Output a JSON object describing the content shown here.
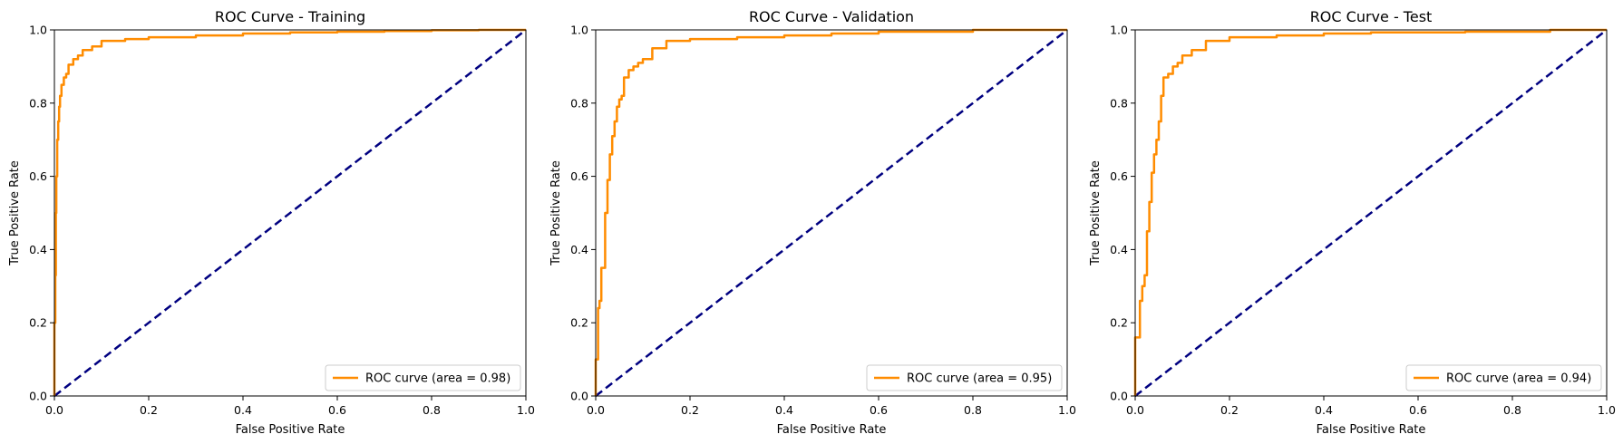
{
  "chart_data": [
    {
      "type": "line",
      "title": "ROC Curve - Training",
      "xlabel": "False Positive Rate",
      "ylabel": "True Positive Rate",
      "xlim": [
        0,
        1
      ],
      "ylim": [
        0,
        1
      ],
      "xticks": [
        "0.0",
        "0.2",
        "0.4",
        "0.6",
        "0.8",
        "1.0"
      ],
      "yticks": [
        "0.0",
        "0.2",
        "0.4",
        "0.6",
        "0.8",
        "1.0"
      ],
      "grid": false,
      "legend_position": "lower-right",
      "colors": {
        "roc": "#ff8c00",
        "diagonal": "#000080"
      },
      "series": [
        {
          "name": "ROC curve (area = 0.98)",
          "x": [
            0.0,
            0.002,
            0.003,
            0.004,
            0.006,
            0.008,
            0.01,
            0.012,
            0.015,
            0.02,
            0.025,
            0.03,
            0.04,
            0.05,
            0.06,
            0.08,
            0.1,
            0.15,
            0.2,
            0.3,
            0.4,
            0.5,
            0.6,
            0.7,
            0.8,
            0.9,
            1.0
          ],
          "y": [
            0.0,
            0.2,
            0.33,
            0.5,
            0.6,
            0.7,
            0.75,
            0.79,
            0.82,
            0.85,
            0.87,
            0.88,
            0.905,
            0.92,
            0.93,
            0.945,
            0.955,
            0.97,
            0.975,
            0.98,
            0.985,
            0.99,
            0.993,
            0.995,
            0.997,
            0.999,
            1.0
          ]
        },
        {
          "name": "",
          "x": [
            0,
            1
          ],
          "y": [
            0,
            1
          ]
        }
      ]
    },
    {
      "type": "line",
      "title": "ROC Curve - Validation",
      "xlabel": "False Positive Rate",
      "ylabel": "True Positive Rate",
      "xlim": [
        0,
        1
      ],
      "ylim": [
        0,
        1
      ],
      "xticks": [
        "0.0",
        "0.2",
        "0.4",
        "0.6",
        "0.8",
        "1.0"
      ],
      "yticks": [
        "0.0",
        "0.2",
        "0.4",
        "0.6",
        "0.8",
        "1.0"
      ],
      "grid": false,
      "legend_position": "lower-right",
      "colors": {
        "roc": "#ff8c00",
        "diagonal": "#000080"
      },
      "series": [
        {
          "name": "ROC curve (area = 0.95)",
          "x": [
            0.0,
            0.005,
            0.008,
            0.012,
            0.02,
            0.025,
            0.03,
            0.035,
            0.04,
            0.045,
            0.05,
            0.055,
            0.06,
            0.07,
            0.08,
            0.09,
            0.1,
            0.12,
            0.15,
            0.2,
            0.3,
            0.4,
            0.5,
            0.6,
            0.8,
            1.0
          ],
          "y": [
            0.0,
            0.1,
            0.24,
            0.26,
            0.35,
            0.5,
            0.59,
            0.66,
            0.71,
            0.75,
            0.79,
            0.81,
            0.82,
            0.87,
            0.89,
            0.9,
            0.91,
            0.92,
            0.95,
            0.97,
            0.975,
            0.98,
            0.985,
            0.99,
            0.995,
            1.0
          ]
        },
        {
          "name": "",
          "x": [
            0,
            1
          ],
          "y": [
            0,
            1
          ]
        }
      ]
    },
    {
      "type": "line",
      "title": "ROC Curve - Test",
      "xlabel": "False Positive Rate",
      "ylabel": "True Positive Rate",
      "xlim": [
        0,
        1
      ],
      "ylim": [
        0,
        1
      ],
      "xticks": [
        "0.0",
        "0.2",
        "0.4",
        "0.6",
        "0.8",
        "1.0"
      ],
      "yticks": [
        "0.0",
        "0.2",
        "0.4",
        "0.6",
        "0.8",
        "1.0"
      ],
      "grid": false,
      "legend_position": "lower-right",
      "colors": {
        "roc": "#ff8c00",
        "diagonal": "#000080"
      },
      "series": [
        {
          "name": "ROC curve (area = 0.94)",
          "x": [
            0.0,
            0.01,
            0.015,
            0.02,
            0.025,
            0.03,
            0.035,
            0.04,
            0.045,
            0.05,
            0.055,
            0.06,
            0.07,
            0.08,
            0.09,
            0.1,
            0.12,
            0.15,
            0.2,
            0.3,
            0.4,
            0.5,
            0.7,
            0.88,
            1.0
          ],
          "y": [
            0.0,
            0.16,
            0.26,
            0.3,
            0.33,
            0.45,
            0.53,
            0.61,
            0.66,
            0.7,
            0.75,
            0.82,
            0.87,
            0.88,
            0.9,
            0.91,
            0.93,
            0.945,
            0.97,
            0.98,
            0.985,
            0.99,
            0.993,
            0.995,
            1.0
          ]
        },
        {
          "name": "",
          "x": [
            0,
            1
          ],
          "y": [
            0,
            1
          ]
        }
      ]
    }
  ]
}
